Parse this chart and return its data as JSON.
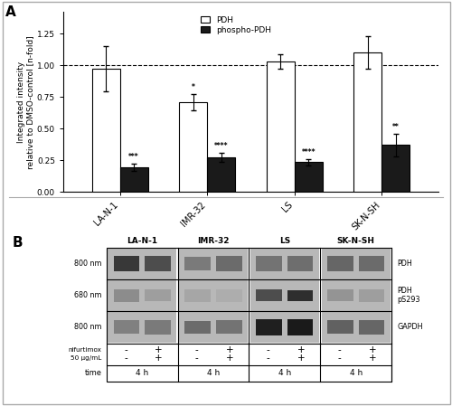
{
  "panel_A_label": "A",
  "panel_B_label": "B",
  "categories": [
    "LA-N-1",
    "IMR-32",
    "LS",
    "SK-N-SH"
  ],
  "pdh_values": [
    0.975,
    0.71,
    1.03,
    1.1
  ],
  "pdh_errors": [
    0.18,
    0.065,
    0.06,
    0.13
  ],
  "phospho_values": [
    0.195,
    0.275,
    0.235,
    0.37
  ],
  "phospho_errors": [
    0.03,
    0.035,
    0.025,
    0.09
  ],
  "pdh_color": "#ffffff",
  "phospho_color": "#1a1a1a",
  "bar_edgecolor": "#000000",
  "ylabel": "Integrated intensity\nrelative to DMSO-control [n-fold]",
  "ylim": [
    0,
    1.42
  ],
  "yticks": [
    0.0,
    0.25,
    0.5,
    0.75,
    1.0,
    1.25
  ],
  "dashed_line_y": 1.0,
  "significance_phospho": [
    "***",
    "****",
    "****",
    "**"
  ],
  "significance_pdh": [
    null,
    "*",
    null,
    null
  ],
  "legend_pdh": "PDH",
  "legend_phospho": "phospho-PDH",
  "bar_width": 0.32,
  "blot_row_labels": [
    "800 nm",
    "680 nm",
    "800 nm"
  ],
  "blot_row_right_labels": [
    "PDH",
    "PDH\npS293",
    "GAPDH"
  ],
  "blot_col_labels": [
    "LA-N-1",
    "IMR-32",
    "LS",
    "SK-N-SH"
  ],
  "bg_color": "#ffffff"
}
